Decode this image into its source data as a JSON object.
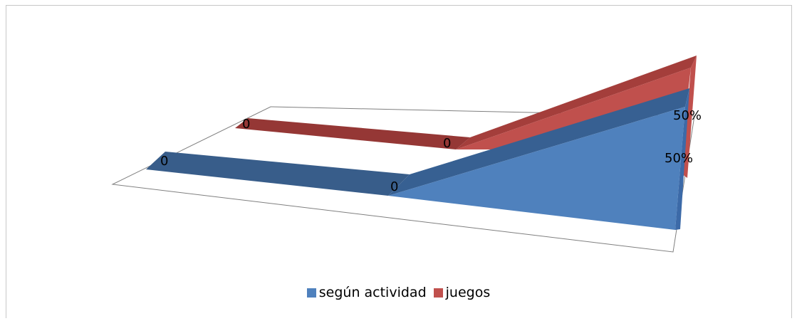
{
  "chart_data": {
    "type": "area",
    "categories": [
      "",
      "",
      ""
    ],
    "series": [
      {
        "name": "según actividad",
        "values": [
          0,
          0,
          0.5
        ],
        "labels": [
          "0",
          "0",
          "50%"
        ]
      },
      {
        "name": "juegos",
        "values": [
          0,
          0,
          0.5
        ],
        "labels": [
          "0",
          "0",
          "50%"
        ]
      }
    ],
    "legend_position": "bottom",
    "colors": {
      "series1_top": "#2f5597",
      "series1_front": "#4f81bd",
      "series1_side": "#3a6aa6",
      "series2_top": "#7f2a2a",
      "series2_front": "#c0504d",
      "series2_side": "#963c3a",
      "floor": "#7f7f7f"
    }
  },
  "legend": {
    "series1": "según actividad",
    "series2": "juegos"
  }
}
